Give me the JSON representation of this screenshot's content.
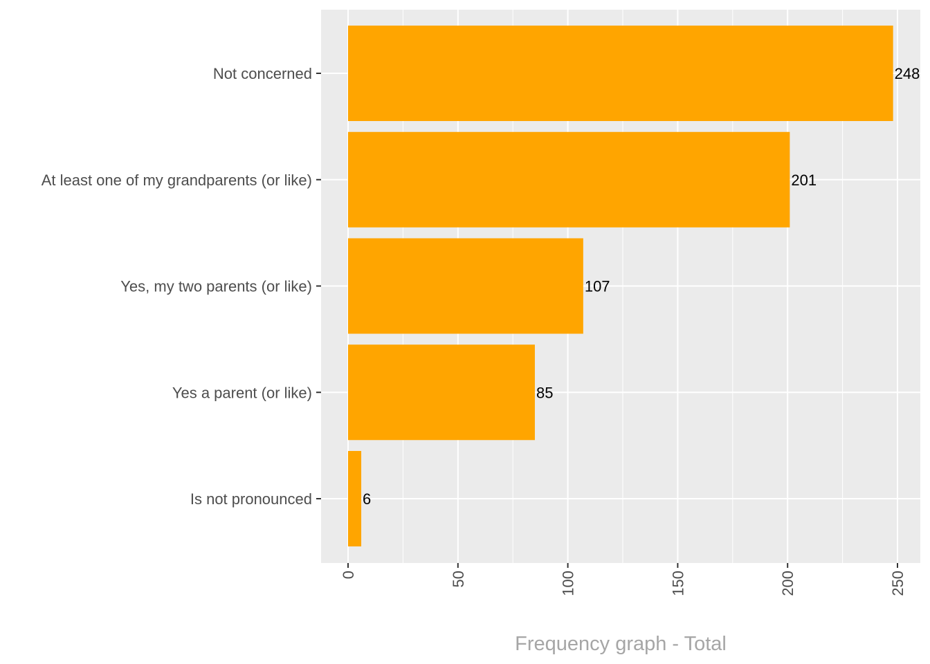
{
  "chart_data": {
    "type": "bar",
    "orientation": "horizontal",
    "categories": [
      "Not concerned",
      "At least one of my grandparents (or like)",
      "Yes, my two parents (or like)",
      "Yes a parent (or like)",
      "Is not pronounced"
    ],
    "values": [
      248,
      201,
      107,
      85,
      6
    ],
    "xlabel": "Frequency graph - Total",
    "ylabel": "",
    "xlim": [
      -12,
      260
    ],
    "x_ticks": [
      0,
      50,
      100,
      150,
      200,
      250
    ],
    "x_minor_ticks": [
      25,
      75,
      125,
      175,
      225
    ],
    "bar_color": "#ffa500",
    "panel_background": "#ebebeb",
    "grid_color": "#ffffff",
    "grid": true
  }
}
